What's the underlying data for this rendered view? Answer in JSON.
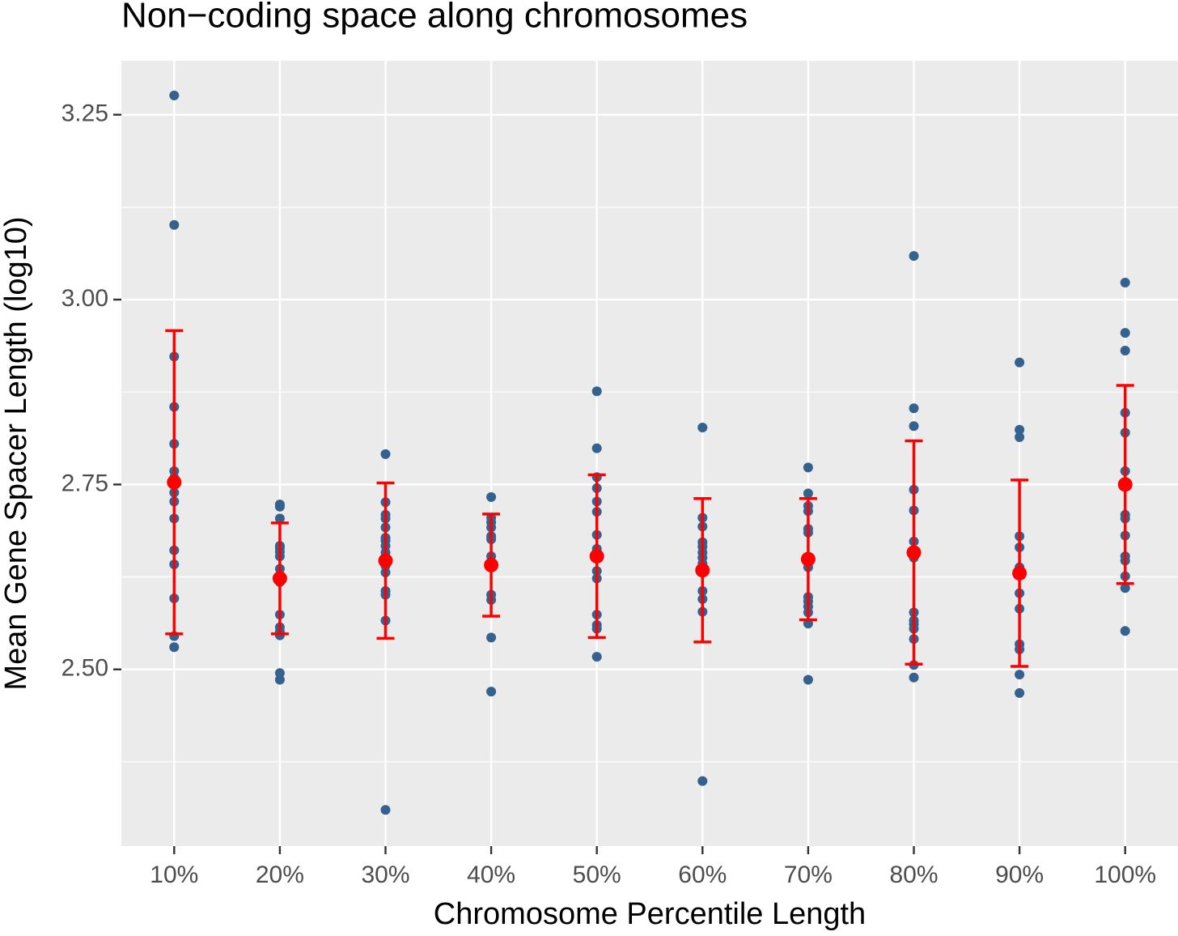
{
  "chart_data": {
    "type": "strip",
    "title": "Non−coding space along chromosomes",
    "xlabel": "Chromosome Percentile Length",
    "ylabel": "Mean Gene Spacer Length (log10)",
    "categories": [
      "10%",
      "20%",
      "30%",
      "40%",
      "50%",
      "60%",
      "70%",
      "80%",
      "90%",
      "100%"
    ],
    "points": [
      [
        3.276,
        3.101,
        2.923,
        2.855,
        2.805,
        2.768,
        2.759,
        2.751,
        2.739,
        2.727,
        2.704,
        2.661,
        2.642,
        2.596,
        2.545,
        2.53
      ],
      [
        2.723,
        2.72,
        2.704,
        2.667,
        2.664,
        2.659,
        2.653,
        2.636,
        2.624,
        2.618,
        2.574,
        2.557,
        2.551,
        2.546,
        2.495,
        2.486
      ],
      [
        2.791,
        2.726,
        2.709,
        2.704,
        2.692,
        2.678,
        2.674,
        2.667,
        2.658,
        2.64,
        2.631,
        2.606,
        2.601,
        2.566,
        2.31
      ],
      [
        2.733,
        2.705,
        2.699,
        2.692,
        2.68,
        2.676,
        2.653,
        2.64,
        2.601,
        2.594,
        2.543,
        2.47
      ],
      [
        2.876,
        2.799,
        2.76,
        2.745,
        2.727,
        2.713,
        2.682,
        2.663,
        2.658,
        2.633,
        2.623,
        2.574,
        2.56,
        2.555,
        2.517
      ],
      [
        2.827,
        2.705,
        2.693,
        2.672,
        2.666,
        2.658,
        2.651,
        2.643,
        2.636,
        2.606,
        2.595,
        2.578,
        2.349
      ],
      [
        2.773,
        2.738,
        2.721,
        2.714,
        2.69,
        2.685,
        2.651,
        2.638,
        2.598,
        2.592,
        2.585,
        2.577,
        2.562,
        2.486
      ],
      [
        3.059,
        2.853,
        2.829,
        2.743,
        2.715,
        2.673,
        2.651,
        2.577,
        2.566,
        2.561,
        2.555,
        2.541,
        2.506,
        2.489
      ],
      [
        2.915,
        2.824,
        2.814,
        2.68,
        2.665,
        2.638,
        2.631,
        2.603,
        2.582,
        2.534,
        2.527,
        2.493,
        2.468
      ],
      [
        3.023,
        2.955,
        2.931,
        2.847,
        2.82,
        2.768,
        2.709,
        2.704,
        2.681,
        2.653,
        2.647,
        2.626,
        2.61,
        2.552
      ]
    ],
    "means": [
      2.753,
      2.623,
      2.647,
      2.641,
      2.653,
      2.634,
      2.649,
      2.658,
      2.63,
      2.75
    ],
    "sd": [
      0.205,
      0.075,
      0.105,
      0.069,
      0.11,
      0.097,
      0.082,
      0.151,
      0.126,
      0.134
    ],
    "point_color": "#34618e",
    "mean_color": "#ff0000",
    "ylim": [
      2.261,
      3.323
    ],
    "yticks": [
      {
        "value": 2.5,
        "label": "2.50"
      },
      2.75,
      {
        "value": 3,
        "label": "3.00"
      },
      3.25
    ],
    "y_minor_grid": [
      2.375,
      2.625,
      2.875,
      3.125
    ],
    "grid": true
  }
}
